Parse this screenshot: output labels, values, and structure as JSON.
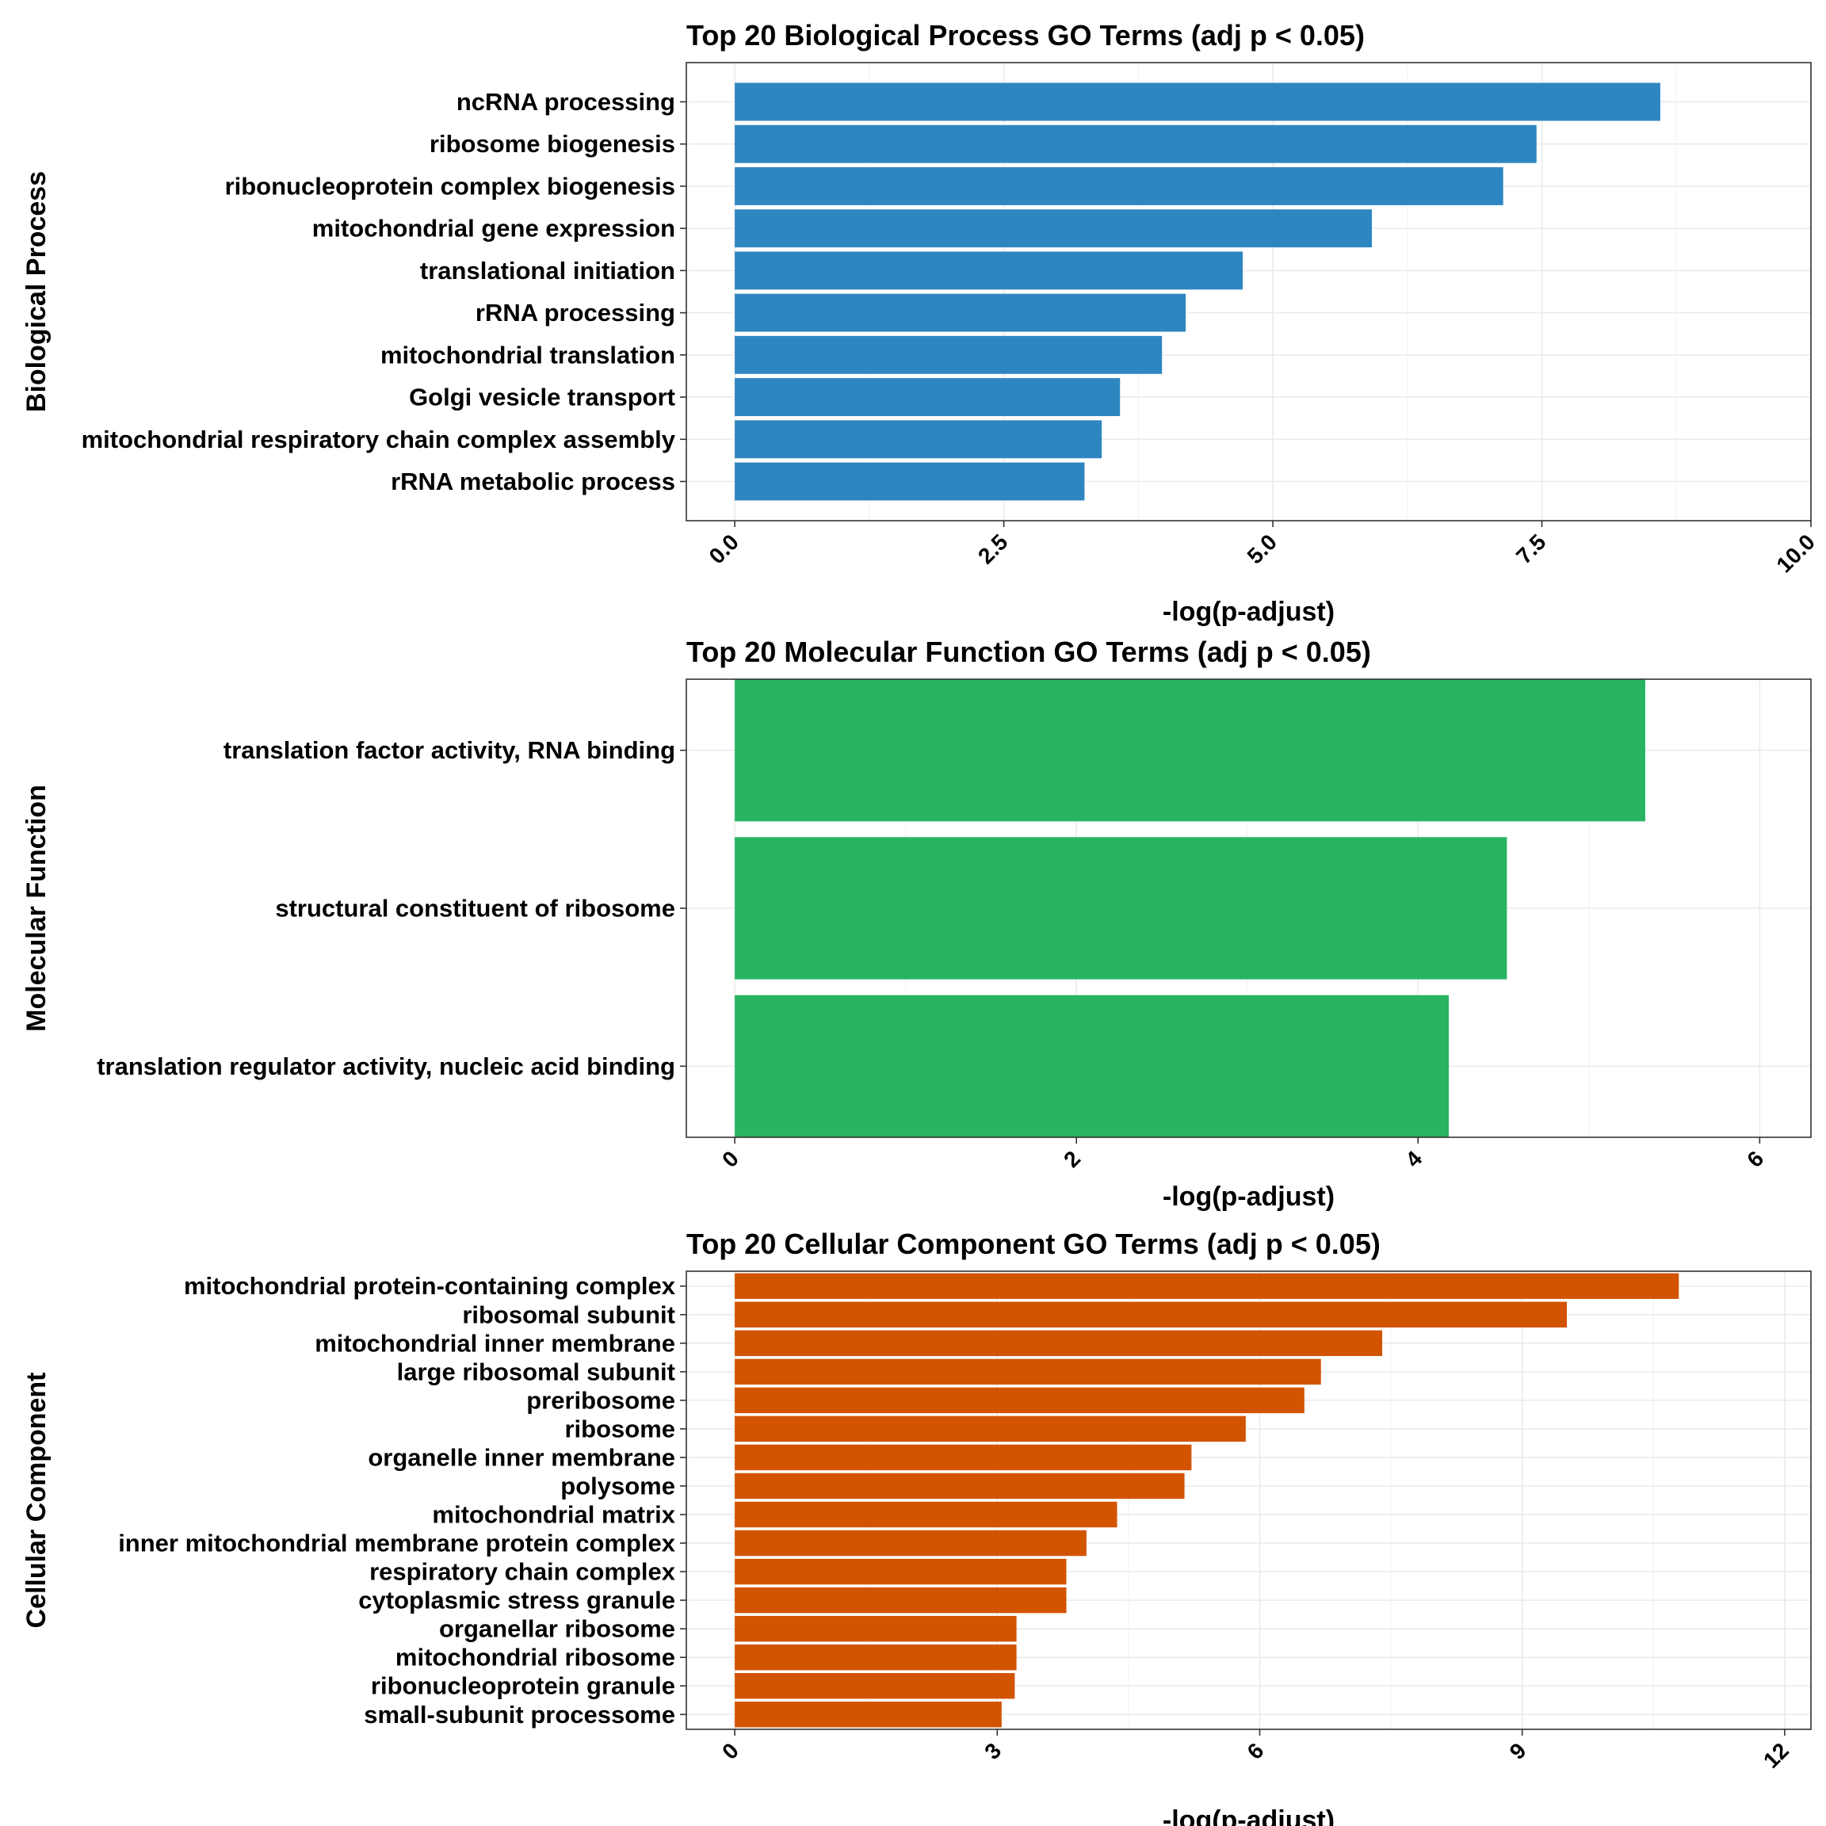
{
  "chart_data": [
    {
      "type": "bar",
      "orientation": "horizontal",
      "title": "Top 20 Biological Process GO Terms (adj p < 0.05)",
      "xlabel": "-log(p-adjust)",
      "ylabel": "Biological Process",
      "color": "#2E86C1",
      "xlim": [
        0,
        10.0
      ],
      "xticks": [
        0,
        2.5,
        5,
        7.5,
        10
      ],
      "xtick_labels": [
        "0.0",
        "2.5",
        "5.0",
        "7.5",
        "10.0"
      ],
      "grid": true,
      "categories": [
        "ncRNA processing",
        "ribosome biogenesis",
        "ribonucleoprotein complex biogenesis",
        "mitochondrial gene expression",
        "translational initiation",
        "rRNA processing",
        "mitochondrial translation",
        "Golgi vesicle transport",
        "mitochondrial respiratory chain complex assembly",
        "rRNA metabolic process"
      ],
      "values": [
        8.6,
        7.45,
        7.14,
        5.92,
        4.72,
        4.19,
        3.97,
        3.58,
        3.41,
        3.25
      ]
    },
    {
      "type": "bar",
      "orientation": "horizontal",
      "title": "Top 20 Molecular Function GO Terms (adj p < 0.05)",
      "xlabel": "-log(p-adjust)",
      "ylabel": "Molecular Function",
      "color": "#28B463",
      "xlim": [
        0,
        6.3
      ],
      "xticks": [
        0,
        2,
        4,
        6
      ],
      "xtick_labels": [
        "0",
        "2",
        "4",
        "6"
      ],
      "grid": true,
      "categories": [
        "translation factor activity, RNA binding",
        "structural constituent of ribosome",
        "translation regulator activity, nucleic acid binding"
      ],
      "values": [
        5.33,
        4.52,
        4.18
      ]
    },
    {
      "type": "bar",
      "orientation": "horizontal",
      "title": "Top 20 Cellular Component GO Terms (adj p < 0.05)",
      "xlabel": "-log(p-adjust)",
      "ylabel": "Cellular Component",
      "color": "#D35400",
      "xlim": [
        0,
        12.3
      ],
      "xticks": [
        0,
        3,
        6,
        9,
        12
      ],
      "xtick_labels": [
        "0",
        "3",
        "6",
        "9",
        "12"
      ],
      "grid": true,
      "categories": [
        "mitochondrial protein-containing complex",
        "ribosomal subunit",
        "mitochondrial inner membrane",
        "large ribosomal subunit",
        "preribosome",
        "ribosome",
        "organelle inner membrane",
        "polysome",
        "mitochondrial matrix",
        "inner mitochondrial membrane protein complex",
        "respiratory chain complex",
        "cytoplasmic stress granule",
        "organellar ribosome",
        "mitochondrial ribosome",
        "ribonucleoprotein granule",
        "small-subunit processome"
      ],
      "values": [
        10.79,
        9.51,
        7.4,
        6.7,
        6.51,
        5.84,
        5.22,
        5.14,
        4.37,
        4.02,
        3.79,
        3.79,
        3.22,
        3.22,
        3.2,
        3.05
      ]
    }
  ]
}
